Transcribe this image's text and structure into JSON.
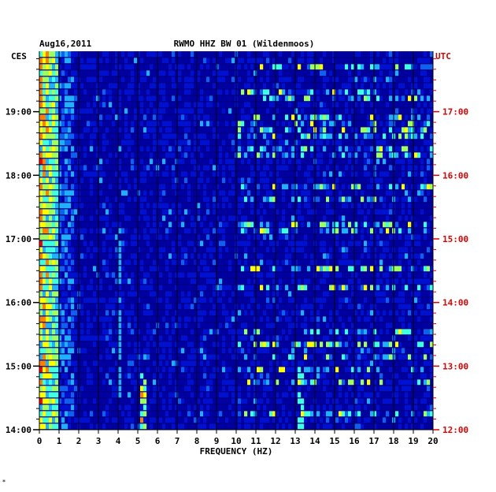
{
  "chart_data": {
    "type": "heatmap",
    "title": "RWMO HHZ BW 01 (Wildenmoos)",
    "date": "Aug16,2011",
    "left_tz": "CES",
    "right_tz": "UTC",
    "xlabel": "FREQUENCY (HZ)",
    "x_ticks": [
      "0",
      "1",
      "2",
      "3",
      "4",
      "5",
      "6",
      "7",
      "8",
      "9",
      "10",
      "11",
      "12",
      "13",
      "14",
      "15",
      "16",
      "17",
      "18",
      "19",
      "20"
    ],
    "xlim": [
      0,
      20
    ],
    "y_ticks_left": [
      {
        "label": "19:00",
        "hour": 19
      },
      {
        "label": "18:00",
        "hour": 18
      },
      {
        "label": "17:00",
        "hour": 17
      },
      {
        "label": "16:00",
        "hour": 16
      },
      {
        "label": "15:00",
        "hour": 15
      },
      {
        "label": "14:00",
        "hour": 14
      }
    ],
    "y_ticks_right": [
      {
        "label": "17:00",
        "hour": 17
      },
      {
        "label": "16:00",
        "hour": 16
      },
      {
        "label": "15:00",
        "hour": 15
      },
      {
        "label": "14:00",
        "hour": 14
      },
      {
        "label": "13:00",
        "hour": 13
      },
      {
        "label": "12:00",
        "hour": 12
      }
    ],
    "ylim_local_hours": [
      14,
      19.95
    ],
    "minor_ticks_per_hour": 6,
    "colormap": [
      "#0000a0",
      "#0010d0",
      "#1060f0",
      "#20b0ff",
      "#40ffe0",
      "#a0ff60",
      "#ffff00",
      "#ff8000",
      "#ff0000"
    ],
    "background_color": "#0000a0",
    "notes_marker": "*"
  }
}
